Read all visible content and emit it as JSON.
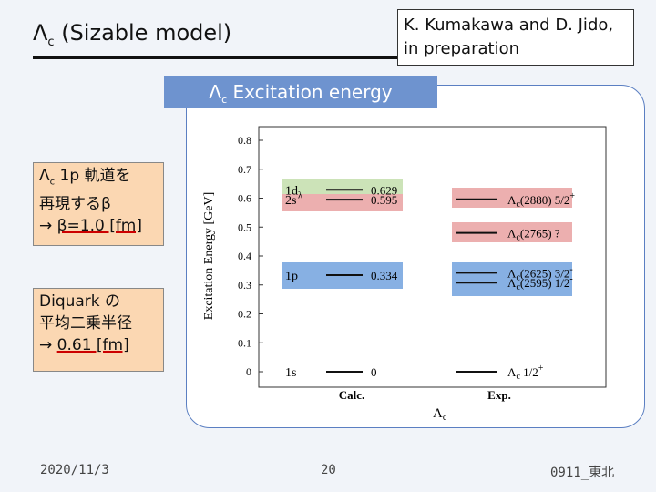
{
  "header": {
    "title": "Λ",
    "title_sub": "c",
    "title_rest": " (Sizable model)",
    "reference_line1": "K. Kumakawa and D. Jido,",
    "reference_line2": "in preparation"
  },
  "banner": {
    "symbol": "Λ",
    "sub": "c",
    "rest": "  Excitation energy"
  },
  "notes": {
    "beta": {
      "line1_symbol": "Λ",
      "line1_sub": "c",
      "line1_rest": " 1p 軌道を",
      "line2": "再現するβ",
      "line3_arrow": "→ ",
      "line3_value": "β=1.0 [fm]"
    },
    "diquark": {
      "line1": "Diquark の",
      "line2": "平均二乗半径",
      "line3_arrow": "→ ",
      "line3_value": "0.61 [fm]"
    }
  },
  "footer": {
    "date": "2020/11/3",
    "page": "20",
    "event": "0911_東北"
  },
  "chart_data": {
    "type": "level-diagram",
    "ylabel": "Excitation Energy [GeV]",
    "yticks": [
      "0",
      "0.1",
      "0.2",
      "0.3",
      "0.4",
      "0.5",
      "0.6",
      "0.7",
      "0.8"
    ],
    "ylim": [
      0,
      0.8
    ],
    "xlabel_columns": [
      "Calc.",
      "Exp."
    ],
    "xlabel_main": "Λc",
    "calc_levels": [
      {
        "label": "1s",
        "value": 0,
        "value_label": "0"
      },
      {
        "label": "1p",
        "value": 0.334,
        "value_label": "0.334",
        "highlight": "#7aa7e0"
      },
      {
        "label": "2s",
        "value": 0.595,
        "value_label": "0.595",
        "highlight": "#eaa6a6"
      },
      {
        "label": "1dλ",
        "value": 0.629,
        "value_label": "0.629",
        "highlight": "#c7e0b0"
      }
    ],
    "exp_levels": [
      {
        "label": "Λc 1/2+",
        "value": 0
      },
      {
        "label": "Λc(2595) 1/2-",
        "value": 0.308,
        "highlight": "#7aa7e0"
      },
      {
        "label": "Λc(2625) 3/2-",
        "value": 0.342,
        "highlight": "#7aa7e0"
      },
      {
        "label": "Λc(2765) ?",
        "value": 0.48,
        "highlight": "#eaa6a6"
      },
      {
        "label": "Λc(2880) 5/2+",
        "value": 0.596,
        "highlight": "#eaa6a6"
      }
    ]
  }
}
